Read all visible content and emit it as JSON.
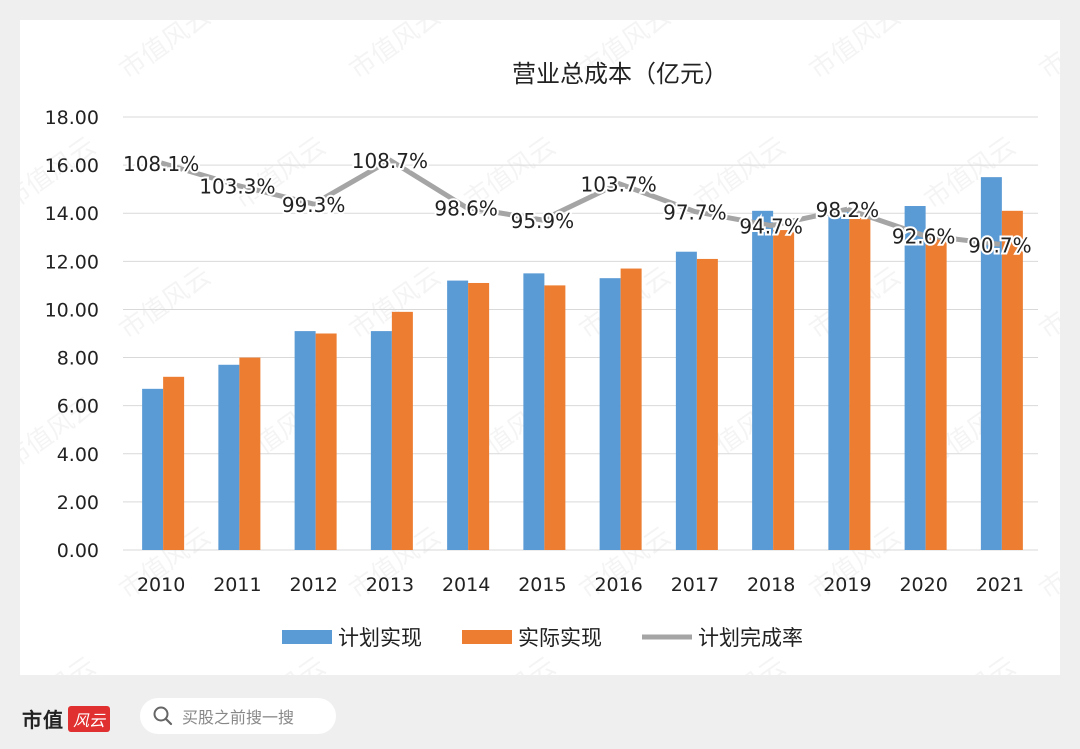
{
  "chart_data": {
    "type": "bar",
    "title": "营业总成本（亿元）",
    "categories": [
      "2010",
      "2011",
      "2012",
      "2013",
      "2014",
      "2015",
      "2016",
      "2017",
      "2018",
      "2019",
      "2020",
      "2021"
    ],
    "y_ticks": [
      "0.00",
      "2.00",
      "4.00",
      "6.00",
      "8.00",
      "10.00",
      "12.00",
      "14.00",
      "16.00",
      "18.00"
    ],
    "ylim": [
      0,
      18
    ],
    "series": [
      {
        "name": "计划实现",
        "type": "bar",
        "color": "#5b9bd5",
        "values": [
          6.7,
          7.7,
          9.1,
          9.1,
          11.2,
          11.5,
          11.3,
          12.4,
          14.1,
          14.1,
          14.3,
          15.5
        ]
      },
      {
        "name": "实际实现",
        "type": "bar",
        "color": "#ed7d31",
        "values": [
          7.2,
          8.0,
          9.0,
          9.9,
          11.1,
          11.0,
          11.7,
          12.1,
          13.3,
          13.8,
          13.2,
          14.1
        ]
      },
      {
        "name": "计划完成率",
        "type": "line",
        "color": "#a5a5a5",
        "values": [
          108.1,
          103.3,
          99.3,
          108.7,
          98.6,
          95.9,
          103.7,
          97.7,
          94.7,
          98.2,
          92.6,
          90.7
        ],
        "labels": [
          "108.1%",
          "103.3%",
          "99.3%",
          "108.7%",
          "98.6%",
          "95.9%",
          "103.7%",
          "97.7%",
          "94.7%",
          "98.2%",
          "92.6%",
          "90.7%"
        ]
      }
    ],
    "grid": true,
    "legend_position": "bottom"
  },
  "footer": {
    "brand": "市值",
    "brand_mark": "风云",
    "search_placeholder": "买股之前搜一搜"
  },
  "watermark": "市值风云"
}
